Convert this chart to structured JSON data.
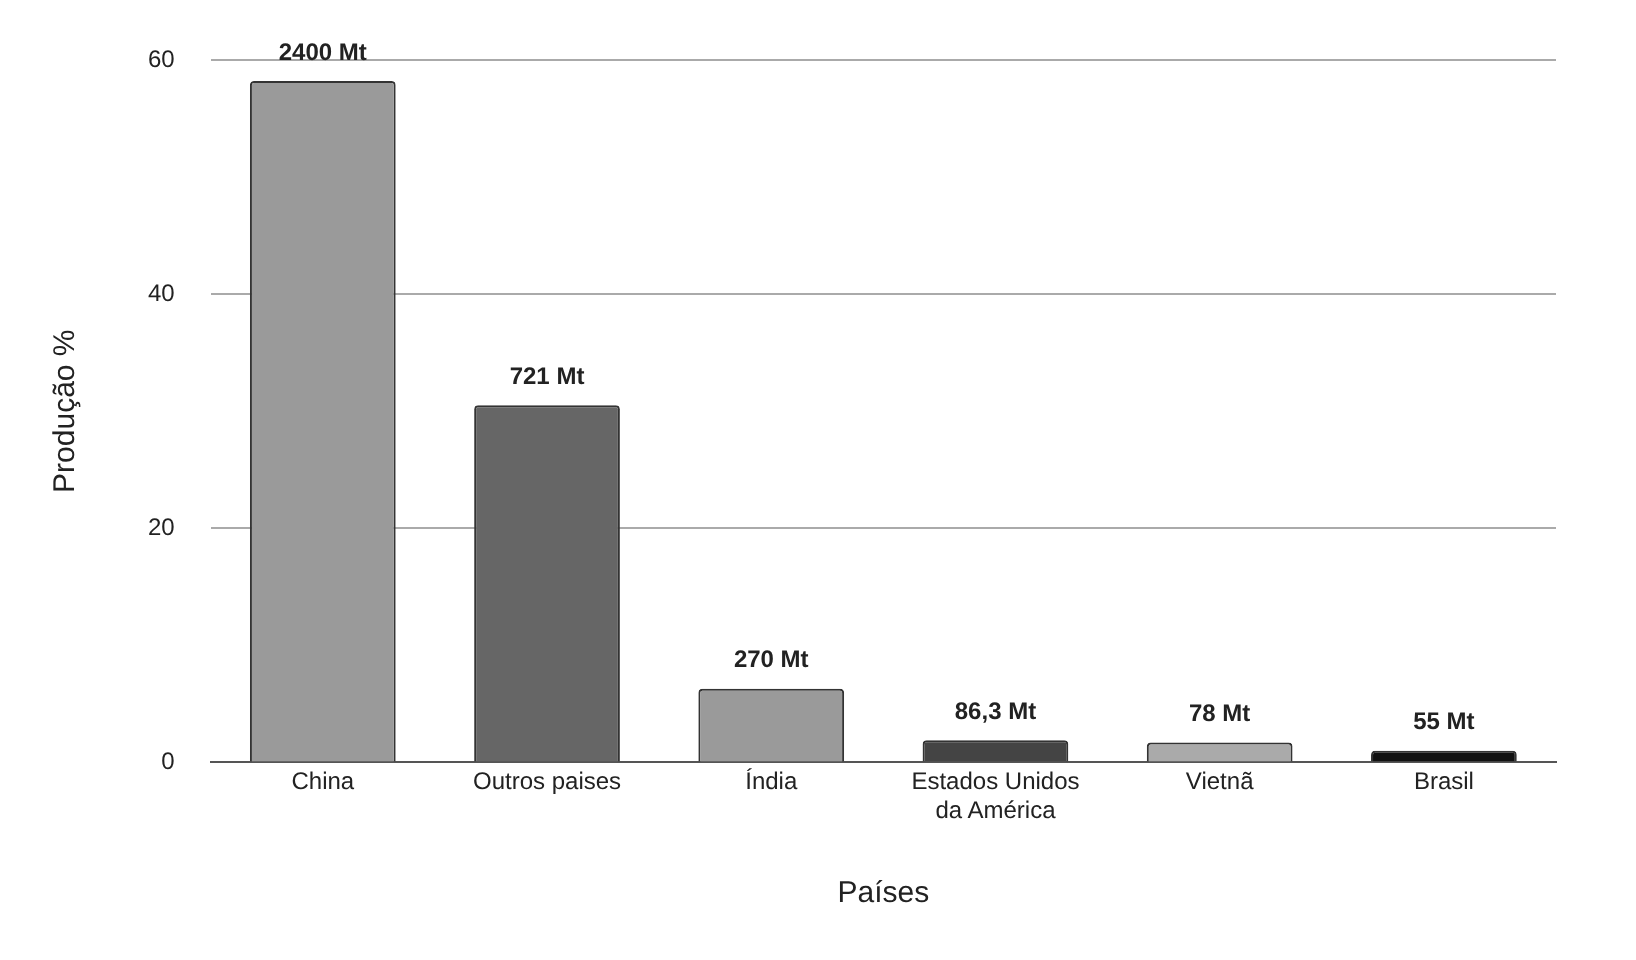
{
  "chart_data": {
    "type": "bar",
    "xlabel": "Países",
    "ylabel": "Produção %",
    "categories": [
      "China",
      "Outros paises",
      "Índia",
      "Estados Unidos da América",
      "Vietnã",
      "Brasil"
    ],
    "values": [
      58.2,
      30.5,
      6.3,
      1.9,
      1.7,
      1.0
    ],
    "colors": [
      "#9a9a9a",
      "#666666",
      "#9a9a9a",
      "#444444",
      "#aaaaaa",
      "#111111"
    ],
    "annotations": [
      {
        "text": "2400 Mt",
        "x": "China",
        "y": 58.2
      },
      {
        "text": "721 Mt",
        "x": "Outros paises",
        "y": 30.5
      },
      {
        "text": "270 Mt",
        "x": "Índia",
        "y": 6.3
      },
      {
        "text": "86,3 Mt",
        "x": "Estados Unidos da América",
        "y": 1.9
      },
      {
        "text": "78 Mt",
        "x": "Vietnã",
        "y": 1.7
      },
      {
        "text": "55 Mt",
        "x": "Brasil",
        "y": 1.0
      }
    ],
    "ylim": [
      0,
      60
    ],
    "yticks": [
      0,
      20,
      40,
      60
    ],
    "grid": "y",
    "legend": false
  }
}
